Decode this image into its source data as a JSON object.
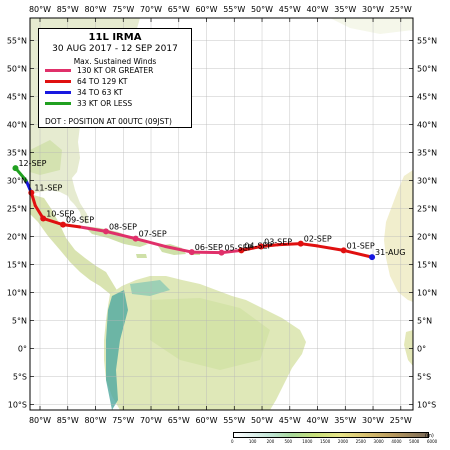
{
  "legend": {
    "storm_name": "11L  IRMA",
    "period": "30 AUG 2017 - 12 SEP 2017",
    "heading": "Max. Sustained Winds",
    "categories": [
      {
        "label": "130 KT OR GREATER",
        "color": "#e0306a"
      },
      {
        "label": "64 TO 129 KT",
        "color": "#e01010"
      },
      {
        "label": "34 TO 63 KT",
        "color": "#1818e0"
      },
      {
        "label": "33 KT OR LESS",
        "color": "#20a020"
      }
    ],
    "note": "DOT : POSITION AT 00UTC (09JST)"
  },
  "map": {
    "lon_range": [
      -82,
      -24
    ],
    "lat_range": [
      -11,
      59
    ],
    "top_labels": [
      "80°W",
      "85°W",
      "80°W",
      "75°W",
      "70°W",
      "65°W",
      "60°W",
      "55°W",
      "50°W",
      "45°W",
      "40°W",
      "35°W",
      "30°W",
      "25°W"
    ],
    "bottom_labels": [
      "80°W",
      "85°W",
      "80°W",
      "75°W",
      "70°W",
      "65°W",
      "60°W",
      "55°W",
      "50°W",
      "45°W",
      "40°W",
      "35°W",
      "30°W",
      "25°W"
    ],
    "lat_labels": [
      "55°N",
      "50°N",
      "45°N",
      "40°N",
      "35°N",
      "30°N",
      "25°N",
      "20°N",
      "15°N",
      "10°N",
      "5°N",
      "0°",
      "5°S",
      "10°S"
    ],
    "lat_values": [
      55,
      50,
      45,
      40,
      35,
      30,
      25,
      20,
      15,
      10,
      5,
      0,
      -5,
      -10
    ]
  },
  "track": {
    "points": [
      {
        "lon": -30.2,
        "lat": 16.3,
        "category": 2,
        "label": "31-AUG"
      },
      {
        "lon": -34.5,
        "lat": 17.5,
        "category": 1,
        "label": "01-SEP"
      },
      {
        "lon": -38.5,
        "lat": 18.3,
        "category": 1
      },
      {
        "lon": -41.0,
        "lat": 18.7,
        "category": 1,
        "label": "02-SEP"
      },
      {
        "lon": -44.5,
        "lat": 18.5,
        "category": 1
      },
      {
        "lon": -47.0,
        "lat": 18.2,
        "category": 1,
        "label": "03-SEP"
      },
      {
        "lon": -50.0,
        "lat": 17.5,
        "category": 1,
        "label": "04-SEP"
      },
      {
        "lon": -53.0,
        "lat": 17.1,
        "category": 0,
        "label": "05-SEP"
      },
      {
        "lon": -57.5,
        "lat": 17.2,
        "category": 0,
        "label": "06-SEP"
      },
      {
        "lon": -61.5,
        "lat": 18.2,
        "category": 0
      },
      {
        "lon": -66.0,
        "lat": 19.6,
        "category": 0,
        "label": "07-SEP"
      },
      {
        "lon": -70.5,
        "lat": 20.9,
        "category": 0,
        "label": "08-SEP"
      },
      {
        "lon": -74.5,
        "lat": 21.7,
        "category": 0
      },
      {
        "lon": -77.0,
        "lat": 22.1,
        "category": 1,
        "label": "09-SEP"
      },
      {
        "lon": -80.0,
        "lat": 23.2,
        "category": 1,
        "label": "10-SEP"
      },
      {
        "lon": -81.2,
        "lat": 25.5,
        "category": 1
      },
      {
        "lon": -81.8,
        "lat": 27.8,
        "category": 1,
        "label": "11-SEP"
      },
      {
        "lon": -82.6,
        "lat": 30.0,
        "category": 2
      },
      {
        "lon": -84.2,
        "lat": 32.2,
        "category": 3,
        "label": "12-SEP"
      }
    ]
  },
  "elevation_scale": {
    "labels": [
      "0",
      "100",
      "200",
      "500",
      "1000",
      "1500",
      "2000",
      "2500",
      "3000",
      "4000",
      "5000",
      "6000"
    ],
    "unit": "(m)"
  }
}
